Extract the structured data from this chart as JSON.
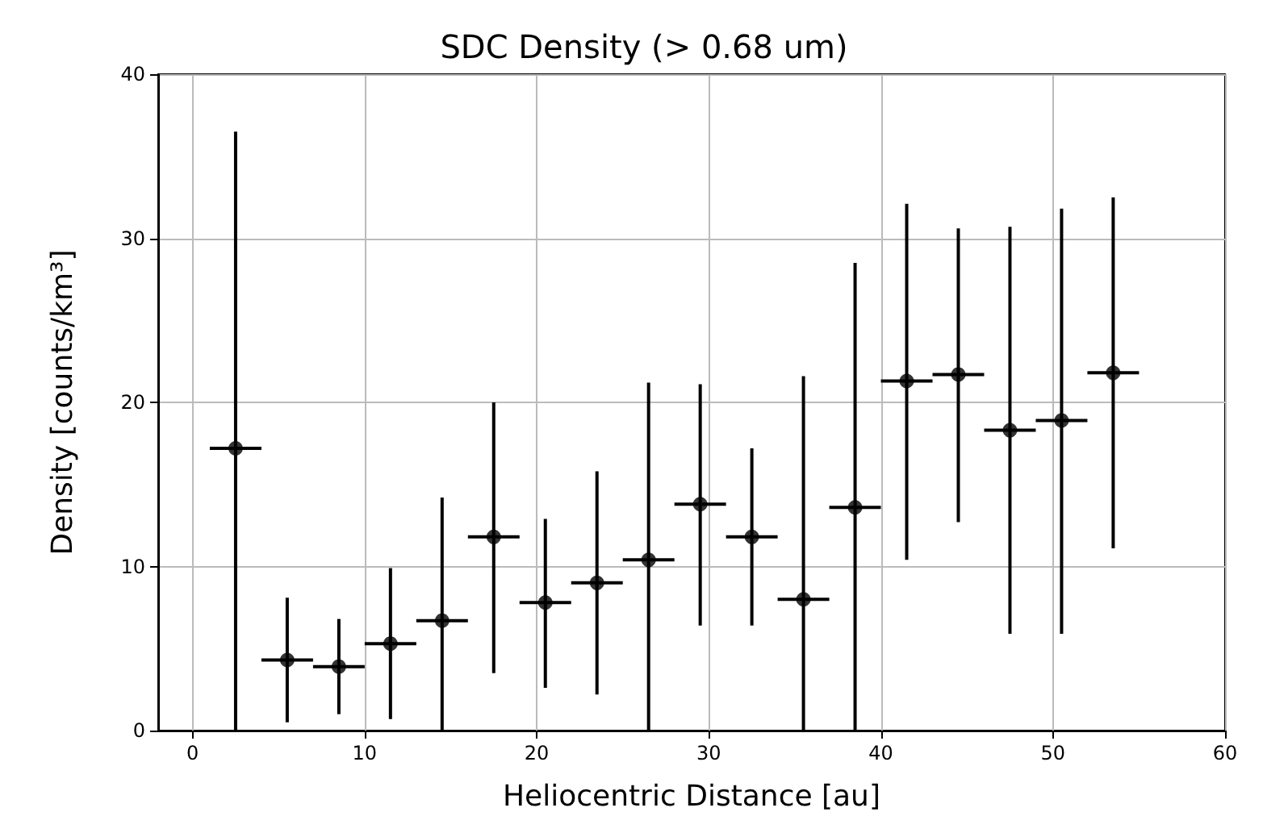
{
  "chart_data": {
    "type": "scatter",
    "title": "SDC Density (> 0.68 um)",
    "xlabel": "Heliocentric Distance [au]",
    "ylabel": "Density [counts/km³]",
    "x": [
      2.5,
      5.5,
      8.5,
      11.5,
      14.5,
      17.5,
      20.5,
      23.5,
      26.5,
      29.5,
      32.5,
      35.5,
      38.5,
      41.5,
      44.5,
      47.5,
      50.5,
      53.5
    ],
    "values": [
      17.2,
      4.3,
      3.9,
      5.3,
      6.7,
      11.8,
      7.8,
      9.0,
      10.4,
      13.8,
      11.8,
      8.0,
      13.6,
      21.3,
      21.7,
      18.3,
      18.9,
      21.8
    ],
    "errors": [
      [
        0,
        36.5
      ],
      [
        0.5,
        8.1
      ],
      [
        1.0,
        6.8
      ],
      [
        0.7,
        9.9
      ],
      [
        0,
        14.2
      ],
      [
        3.5,
        20.0
      ],
      [
        2.6,
        12.9
      ],
      [
        2.2,
        15.8
      ],
      [
        0,
        21.2
      ],
      [
        6.4,
        21.1
      ],
      [
        6.4,
        17.2
      ],
      [
        0,
        21.6
      ],
      [
        0,
        28.5
      ],
      [
        10.4,
        32.1
      ],
      [
        12.7,
        30.6
      ],
      [
        5.9,
        30.7
      ],
      [
        5.9,
        31.8
      ],
      [
        11.1,
        32.5
      ]
    ],
    "xerrors": [
      1.5,
      1.5,
      1.5,
      1.5,
      1.5,
      1.5,
      1.5,
      1.5,
      1.5,
      1.5,
      1.5,
      1.5,
      1.5,
      1.5,
      1.5,
      1.5,
      1.5,
      1.5
    ],
    "color": "#000000",
    "marker": "circle",
    "xlim": [
      -2,
      60
    ],
    "xticks": [
      0,
      10,
      20,
      30,
      40,
      50,
      60
    ],
    "ylim": [
      0,
      40
    ],
    "yticks": [
      0,
      10,
      20,
      30,
      40
    ],
    "grid": true
  }
}
